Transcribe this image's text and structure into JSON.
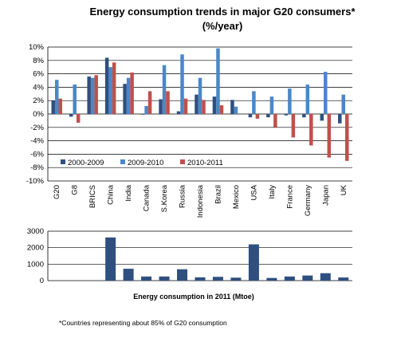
{
  "top_chart": {
    "title_line1": "Energy consumption trends in major G20 consumers*",
    "title_line2": "(%/year)"
  },
  "bottom_chart": {
    "title": "Energy consumption in 2011 (Mtoe)"
  },
  "footnote": "*Countries representing about 85% of G20 consumption",
  "colors": {
    "series_2000_2009": "#2f4f7f",
    "series_2009_2010": "#4a87c9",
    "series_2010_2011": "#c0504d",
    "grid": "#000000"
  },
  "chart_data": [
    {
      "type": "bar",
      "categories": [
        "G20",
        "G8",
        "BRICS",
        "China",
        "India",
        "Canada",
        "S.Korea",
        "Russia",
        "Indonesia",
        "Brazil",
        "Mexico",
        "USA",
        "Italy",
        "France",
        "Germany",
        "Japan",
        "UK"
      ],
      "series": [
        {
          "name": "2000-2009",
          "values": [
            2.0,
            -0.4,
            5.6,
            8.4,
            4.5,
            -0.1,
            2.2,
            0.4,
            2.9,
            2.6,
            2.1,
            -0.5,
            -0.5,
            -0.2,
            -0.5,
            -1.0,
            -1.4
          ]
        },
        {
          "name": "2009-2010",
          "values": [
            5.1,
            4.4,
            5.4,
            7.0,
            5.4,
            1.2,
            7.3,
            8.9,
            5.4,
            9.8,
            1.1,
            3.4,
            2.6,
            3.8,
            4.4,
            6.3,
            2.9
          ]
        },
        {
          "name": "2010-2011",
          "values": [
            2.3,
            -1.3,
            5.8,
            7.7,
            6.2,
            3.4,
            3.4,
            2.3,
            2.1,
            1.3,
            0.0,
            -0.7,
            -2.0,
            -3.5,
            -4.7,
            -6.5,
            -7.0
          ]
        }
      ],
      "ylim": [
        -10,
        10
      ],
      "yticks": [
        "10%",
        "8%",
        "6%",
        "4%",
        "2%",
        "0%",
        "-2%",
        "-4%",
        "-6%",
        "-8%",
        "-10%"
      ],
      "ytick_values": [
        10,
        8,
        6,
        4,
        2,
        0,
        -2,
        -4,
        -6,
        -8,
        -10
      ],
      "legend": [
        "2000-2009",
        "2009-2010",
        "2010-2011"
      ],
      "legend_position": "bottom-left",
      "grid": true
    },
    {
      "type": "bar",
      "categories": [
        "G20",
        "G8",
        "BRICS",
        "China",
        "India",
        "Canada",
        "S.Korea",
        "Russia",
        "Indonesia",
        "Brazil",
        "Mexico",
        "USA",
        "Italy",
        "France",
        "Germany",
        "Japan",
        "UK"
      ],
      "values": [
        null,
        null,
        null,
        2620,
        720,
        250,
        250,
        690,
        200,
        230,
        180,
        2200,
        160,
        250,
        310,
        450,
        190
      ],
      "ylim": [
        0,
        3000
      ],
      "yticks": [
        "3000",
        "2000",
        "1000",
        "0"
      ],
      "ytick_values": [
        3000,
        2000,
        1000,
        0
      ],
      "grid": true
    }
  ]
}
